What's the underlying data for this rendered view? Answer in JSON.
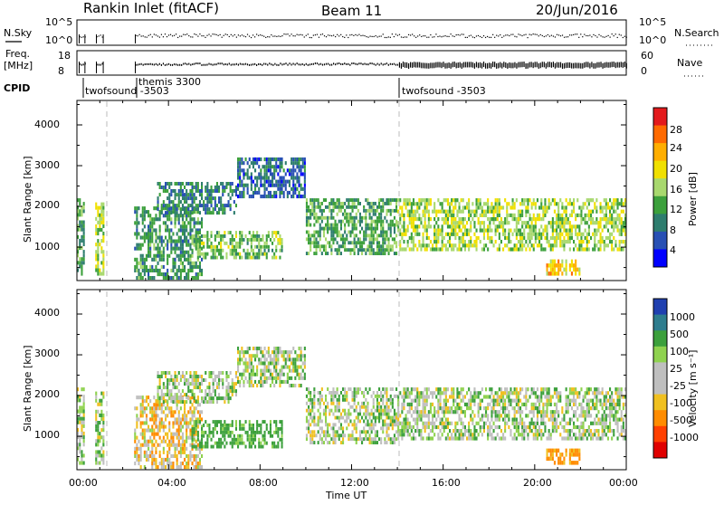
{
  "header": {
    "station": "Rankin Inlet (fitACF)",
    "beam": "Beam 11",
    "date": "20/Jun/2016"
  },
  "status_panels": {
    "nsky_label": "N.Sky",
    "nsearch_label": "N.Search",
    "nsky_ticks": [
      "10^5",
      "10^0"
    ],
    "nsearch_ticks": [
      "10^5",
      "10^0"
    ],
    "freq_label_1": "Freq.",
    "freq_label_2": "[MHz]",
    "freq_ticks": [
      "18",
      "8"
    ],
    "nave_label": "Nave",
    "nave_ticks": [
      "60",
      "0"
    ],
    "cpid_label": "CPID",
    "cpid_segments": [
      {
        "name": "twofsound -3503",
        "start_h": 0.0
      },
      {
        "name": "themis 3300",
        "start_h": 2.55
      },
      {
        "name": "twofsound -3503",
        "start_h": 14.0
      }
    ]
  },
  "axes": {
    "ylabel": "Slant Range [km]",
    "yticks": [
      "1000",
      "2000",
      "3000",
      "4000"
    ],
    "xticks": [
      "00:00",
      "04:00",
      "08:00",
      "12:00",
      "16:00",
      "20:00",
      "00:00"
    ],
    "xlabel": "Time UT"
  },
  "power_colorbar": {
    "label": "Power [dB]",
    "ticks": [
      "28",
      "24",
      "20",
      "16",
      "12",
      "8",
      "4"
    ],
    "colors": [
      "#e31a1c",
      "#ff6a00",
      "#ffae00",
      "#f0e000",
      "#a8d86e",
      "#3ca03c",
      "#2e7d6e",
      "#2850b4",
      "#0000ff"
    ]
  },
  "velocity_colorbar": {
    "label": "Velocity [m s⁻¹]",
    "ticks": [
      "1000",
      "500",
      "100",
      "25",
      "-25",
      "-100",
      "-500",
      "-1000"
    ],
    "colors": [
      "#2040b0",
      "#2e7d8e",
      "#3ca03c",
      "#8fd24f",
      "#bfbfbf",
      "#bfbfbf",
      "#f0c020",
      "#ff8c00",
      "#ff4000",
      "#e00000"
    ]
  },
  "chart_data": {
    "type": "heatmap",
    "title": "Rankin Inlet (fitACF)",
    "xlabel": "Time UT",
    "ylabel": "Slant Range [km]",
    "xlim_hours": [
      0,
      24
    ],
    "ylim_km": [
      180,
      4600
    ],
    "panels": [
      "Power [dB]",
      "Velocity [m s⁻¹]"
    ],
    "echo_regions": [
      {
        "t0": 0.0,
        "t1": 0.35,
        "r0": 300,
        "r1": 2200,
        "power_db": 12,
        "velocity": 25
      },
      {
        "t0": 0.8,
        "t1": 1.2,
        "r0": 300,
        "r1": 2100,
        "power_db": 16,
        "velocity": 25
      },
      {
        "t0": 2.5,
        "t1": 5.5,
        "r0": 200,
        "r1": 2000,
        "power_db": 10,
        "velocity": -25
      },
      {
        "t0": 3.5,
        "t1": 7.0,
        "r0": 1800,
        "r1": 2600,
        "power_db": 8,
        "velocity": 25
      },
      {
        "t0": 7.0,
        "t1": 10.0,
        "r0": 2200,
        "r1": 3200,
        "power_db": 6,
        "velocity": 25
      },
      {
        "t0": 5.0,
        "t1": 9.0,
        "r0": 700,
        "r1": 1400,
        "power_db": 14,
        "velocity": 100
      },
      {
        "t0": 10.0,
        "t1": 14.0,
        "r0": 800,
        "r1": 2200,
        "power_db": 12,
        "velocity": 25
      },
      {
        "t0": 14.0,
        "t1": 24.0,
        "r0": 900,
        "r1": 2200,
        "power_db": 16,
        "velocity": 25
      },
      {
        "t0": 20.5,
        "t1": 22.0,
        "r0": 300,
        "r1": 700,
        "power_db": 22,
        "velocity": -100
      }
    ]
  }
}
